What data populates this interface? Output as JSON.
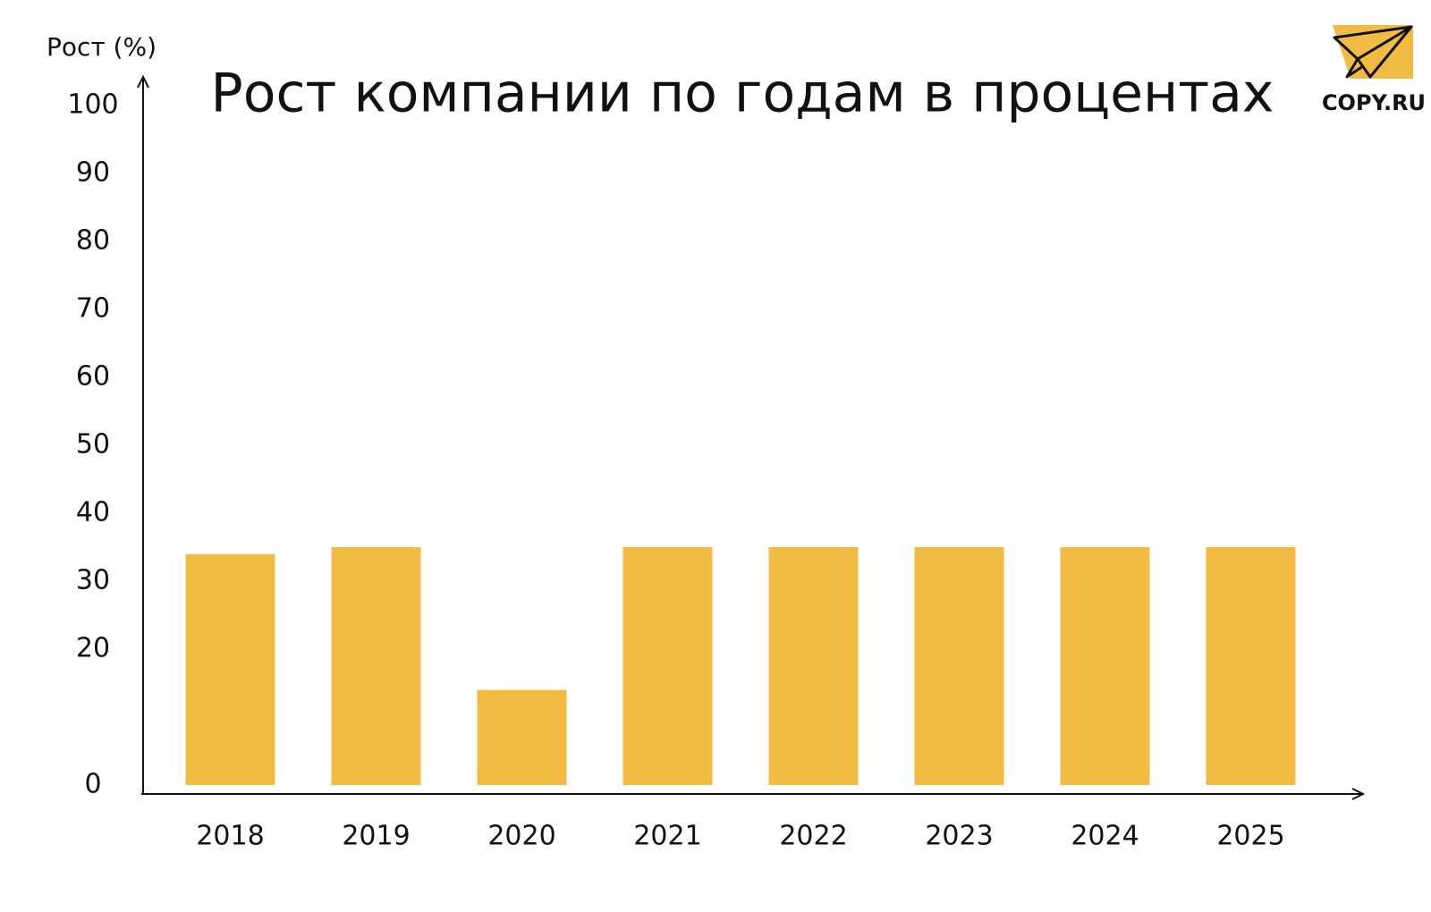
{
  "chart_data": {
    "type": "bar",
    "title": "Рост компании по годам в процентах",
    "y_label": "Рост (%)",
    "logo": "COPY.RU",
    "categories": [
      "2018",
      "2019",
      "2020",
      "2021",
      "2022",
      "2023",
      "2024",
      "2025"
    ],
    "values": [
      34,
      35,
      14,
      35,
      35,
      35,
      35,
      35
    ],
    "color": "#f2bb44",
    "ylim": [
      0,
      100
    ],
    "yticks": [
      0,
      20,
      30,
      40,
      50,
      60,
      70,
      80,
      90,
      100
    ],
    "grid": false
  }
}
